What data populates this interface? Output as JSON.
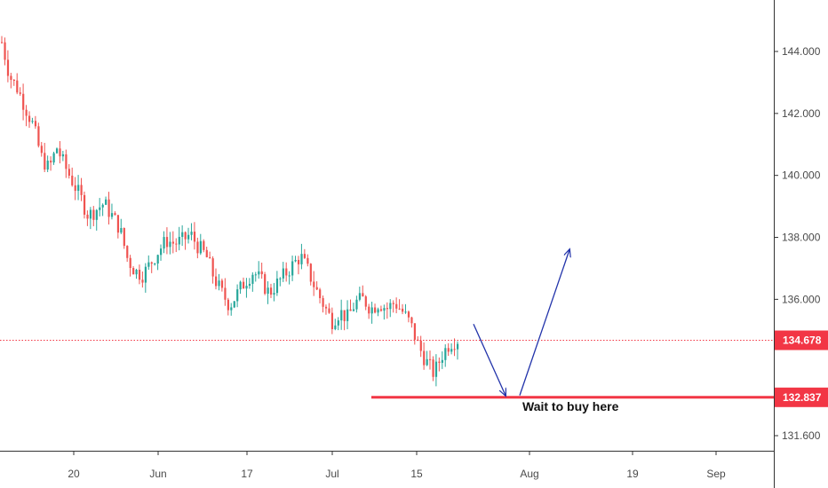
{
  "chart_data": {
    "type": "candlestick",
    "title": "",
    "xlabel": "",
    "ylabel": "",
    "ylim": [
      131.2,
      145.8
    ],
    "y_ticks": [
      "144.000",
      "142.000",
      "140.000",
      "138.000",
      "136.000",
      "131.600"
    ],
    "x_ticks": [
      "20",
      "Jun",
      "17",
      "Jul",
      "15",
      "Aug",
      "19",
      "Sep"
    ],
    "grid": false,
    "colors": {
      "up": "#26a69a",
      "down": "#ef5350",
      "arrow": "#2233aa",
      "level_line": "#f23645",
      "axis": "#333333"
    },
    "current_price": {
      "value": 134.678,
      "label": "134.678",
      "color": "#f23645",
      "style": "dotted"
    },
    "support_level": {
      "value": 132.837,
      "label": "132.837",
      "color": "#f23645",
      "style": "solid"
    },
    "annotation": {
      "text": "Wait to buy here"
    },
    "path_points": [
      144.3,
      143.2,
      142.8,
      142.2,
      141.6,
      140.6,
      140.2,
      140.9,
      140.3,
      139.8,
      139.3,
      138.7,
      138.9,
      139.1,
      138.7,
      138.3,
      137.3,
      136.9,
      136.8,
      137.2,
      137.6,
      137.9,
      137.8,
      137.9,
      138.1,
      137.7,
      137.4,
      136.7,
      136.2,
      135.8,
      136.2,
      136.6,
      136.9,
      136.6,
      136.2,
      136.5,
      136.8,
      137.1,
      137.4,
      136.9,
      136.3,
      135.8,
      135.3,
      135.6,
      135.4,
      135.9,
      136.0,
      135.7,
      135.9,
      135.7,
      135.9,
      135.6,
      135.2,
      134.5,
      134.0,
      133.6,
      134.2,
      134.6,
      134.7
    ],
    "arrows": [
      {
        "from": 135.2,
        "to": 132.9,
        "direction": "down"
      },
      {
        "from": 132.9,
        "to": 137.6,
        "direction": "up"
      }
    ]
  }
}
